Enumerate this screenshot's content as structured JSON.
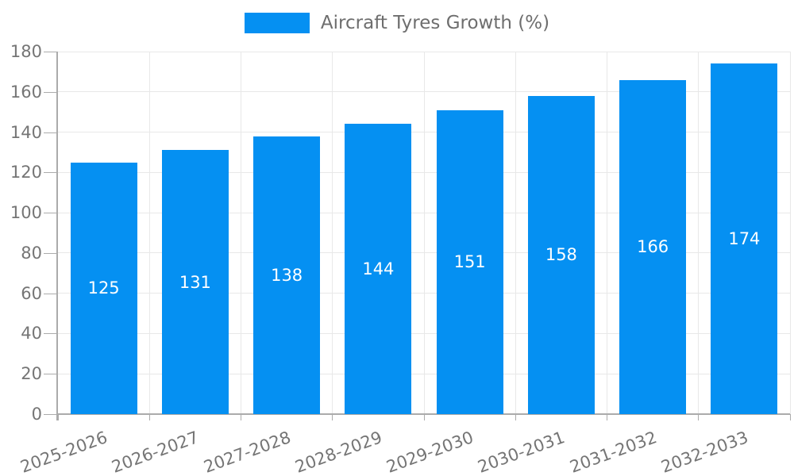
{
  "chart_data": {
    "type": "bar",
    "title": "",
    "legend": {
      "label": "Aircraft Tyres Growth (%)",
      "position": "top-center"
    },
    "categories": [
      "2025-2026",
      "2026-2027",
      "2027-2028",
      "2028-2029",
      "2029-2030",
      "2030-2031",
      "2031-2032",
      "2032-2033"
    ],
    "series": [
      {
        "name": "Aircraft Tyres Growth (%)",
        "values": [
          125,
          131,
          138,
          144,
          151,
          158,
          166,
          174
        ]
      }
    ],
    "xlabel": "",
    "ylabel": "",
    "ylim": [
      0,
      180
    ],
    "yticks": [
      0,
      20,
      40,
      60,
      80,
      100,
      120,
      140,
      160,
      180
    ],
    "grid": true,
    "x_label_rotation_deg": -20,
    "colors": {
      "bar": "#0590f2",
      "grid_line": "#e8e8e8",
      "axis_line": "#ababab",
      "axis_text": "#757575",
      "value_label": "#ffffff",
      "legend_text": "#6e6e6e"
    }
  }
}
